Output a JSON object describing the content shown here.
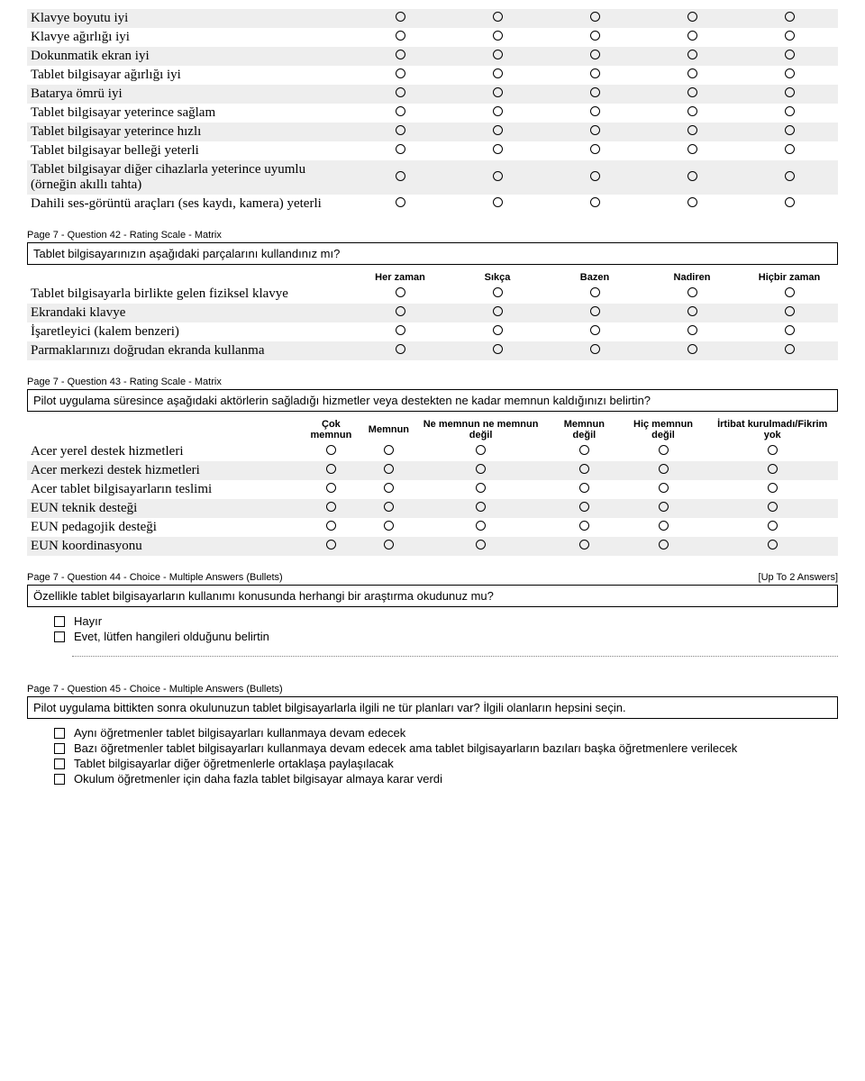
{
  "q41": {
    "rows": [
      "Klavye boyutu iyi",
      "Klavye ağırlığı iyi",
      "Dokunmatik ekran iyi",
      "Tablet bilgisayar ağırlığı iyi",
      "Batarya ömrü iyi",
      "Tablet bilgisayar yeterince sağlam",
      "Tablet bilgisayar yeterince hızlı",
      "Tablet bilgisayar belleği yeterli",
      "Tablet bilgisayar diğer cihazlarla yeterince uyumlu (örneğin akıllı tahta)",
      "Dahili ses-görüntü araçları (ses kaydı, kamera) yeterli"
    ],
    "cols": 5,
    "alt_start": 1
  },
  "q42": {
    "meta": "Page 7 - Question 42 - Rating Scale - Matrix",
    "prompt": "Tablet bilgisayarınızın aşağıdaki parçalarını kullandınız mı?",
    "headers": [
      "Her zaman",
      "Sıkça",
      "Bazen",
      "Nadiren",
      "Hiçbir zaman"
    ],
    "rows": [
      "Tablet bilgisayarla birlikte gelen fiziksel klavye",
      "Ekrandaki klavye",
      "İşaretleyici (kalem benzeri)",
      "Parmaklarınızı doğrudan ekranda kullanma"
    ]
  },
  "q43": {
    "meta": "Page 7 - Question 43 - Rating Scale - Matrix",
    "prompt": "Pilot uygulama süresince aşağıdaki aktörlerin sağladığı hizmetler veya destekten ne kadar memnun kaldığınızı belirtin?",
    "headers": [
      "Çok memnun",
      "Memnun",
      "Ne memnun ne memnun değil",
      "Memnun değil",
      "Hiç memnun değil",
      "İrtibat kurulmadı/Fikrim yok"
    ],
    "rows": [
      "Acer yerel destek hizmetleri",
      "Acer merkezi destek hizmetleri",
      "Acer tablet bilgisayarların teslimi",
      "EUN teknik desteği",
      "EUN pedagojik desteği",
      "EUN koordinasyonu"
    ]
  },
  "q44": {
    "meta": "Page 7 - Question 44 - Choice - Multiple Answers (Bullets)",
    "meta_right": "[Up To 2 Answers]",
    "prompt": "Özellikle tablet bilgisayarların kullanımı konusunda herhangi bir araştırma okudunuz mu?",
    "options": [
      "Hayır",
      "Evet, lütfen hangileri olduğunu belirtin"
    ]
  },
  "q45": {
    "meta": "Page 7 - Question 45 - Choice - Multiple Answers (Bullets)",
    "prompt": "Pilot uygulama bittikten sonra okulunuzun tablet bilgisayarlarla ilgili ne tür planları var? İlgili olanların hepsini seçin.",
    "options": [
      "Aynı öğretmenler tablet bilgisayarları kullanmaya devam edecek",
      "Bazı öğretmenler tablet bilgisayarları kullanmaya devam edecek ama tablet bilgisayarların bazıları başka öğretmenlere verilecek",
      "Tablet bilgisayarlar diğer öğretmenlerle ortaklaşa paylaşılacak",
      "Okulum öğretmenler için daha fazla tablet bilgisayar almaya karar verdi"
    ]
  }
}
